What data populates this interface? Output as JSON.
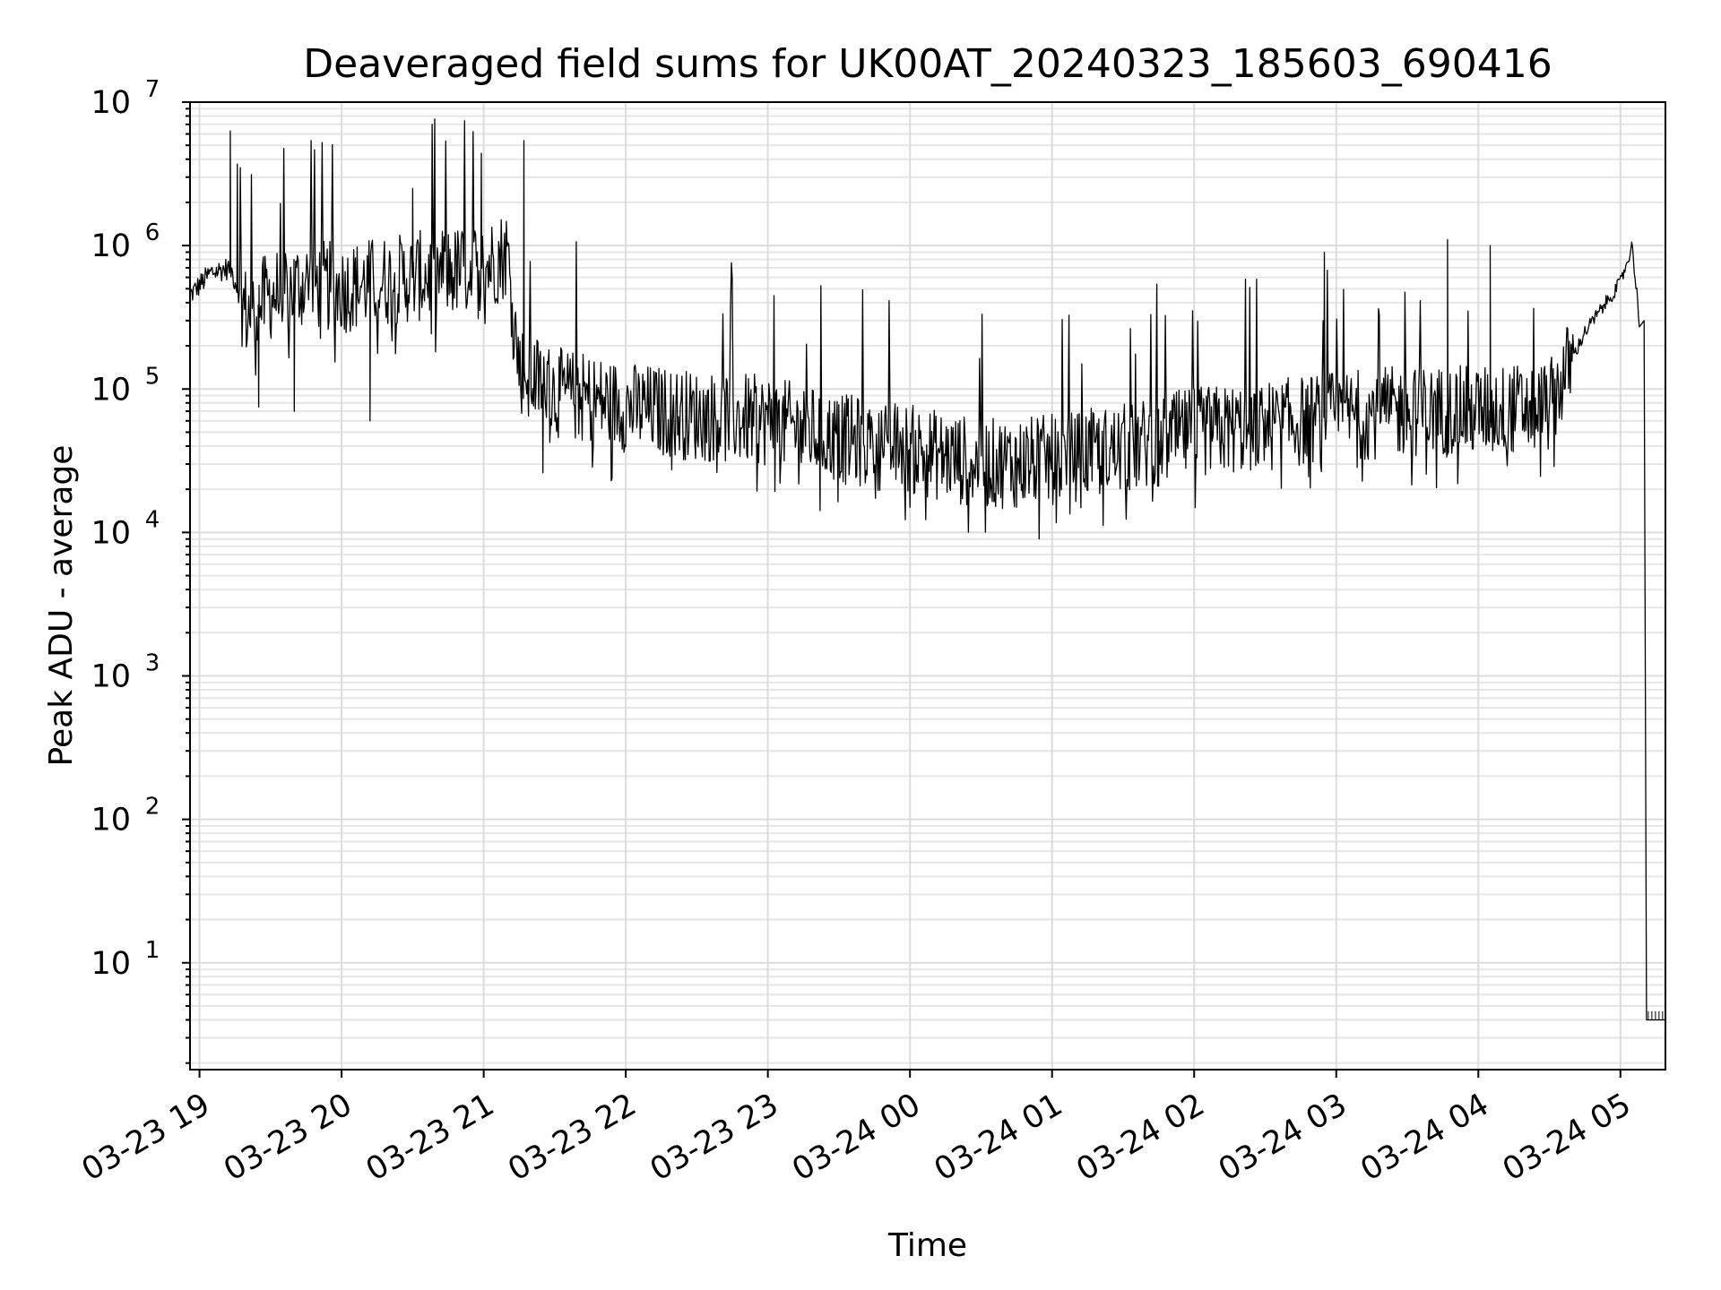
{
  "chart_data": {
    "type": "line",
    "title": "Deaveraged field sums for UK00AT_20240323_185603_690416",
    "xlabel": "Time",
    "ylabel": "Peak ADU - average",
    "yscale": "log",
    "ylim": [
      1.8,
      10000000
    ],
    "xlim": [
      "2024-03-23 18:56",
      "2024-03-24 05:19"
    ],
    "grid": true,
    "legend": "none",
    "line_color": "#000000",
    "x_ticks": [
      {
        "label": "03-23 19",
        "value": "2024-03-23 19:00"
      },
      {
        "label": "03-23 20",
        "value": "2024-03-23 20:00"
      },
      {
        "label": "03-23 21",
        "value": "2024-03-23 21:00"
      },
      {
        "label": "03-23 22",
        "value": "2024-03-23 22:00"
      },
      {
        "label": "03-23 23",
        "value": "2024-03-23 23:00"
      },
      {
        "label": "03-24 00",
        "value": "2024-03-24 00:00"
      },
      {
        "label": "03-24 01",
        "value": "2024-03-24 01:00"
      },
      {
        "label": "03-24 02",
        "value": "2024-03-24 02:00"
      },
      {
        "label": "03-24 03",
        "value": "2024-03-24 03:00"
      },
      {
        "label": "03-24 04",
        "value": "2024-03-24 04:00"
      },
      {
        "label": "03-24 05",
        "value": "2024-03-24 05:00"
      }
    ],
    "y_ticks": [
      {
        "base": "10",
        "exp": "1",
        "value": 10
      },
      {
        "base": "10",
        "exp": "2",
        "value": 100
      },
      {
        "base": "10",
        "exp": "3",
        "value": 1000
      },
      {
        "base": "10",
        "exp": "4",
        "value": 10000
      },
      {
        "base": "10",
        "exp": "5",
        "value": 100000
      },
      {
        "base": "10",
        "exp": "6",
        "value": 1000000
      },
      {
        "base": "10",
        "exp": "7",
        "value": 10000000
      }
    ],
    "series": [
      {
        "x": [
          "2024-03-23 18:56",
          "2024-03-23 19:05",
          "2024-03-23 19:13",
          "2024-03-23 19:20",
          "2024-03-23 19:30",
          "2024-03-23 19:45",
          "2024-03-23 20:00",
          "2024-03-23 20:15",
          "2024-03-23 20:30",
          "2024-03-23 20:45",
          "2024-03-23 21:00",
          "2024-03-23 21:10",
          "2024-03-23 21:15",
          "2024-03-23 21:30",
          "2024-03-23 21:45",
          "2024-03-23 22:00",
          "2024-03-23 22:30",
          "2024-03-23 23:00",
          "2024-03-23 23:30",
          "2024-03-24 00:00",
          "2024-03-24 00:30",
          "2024-03-24 01:00",
          "2024-03-24 01:30",
          "2024-03-24 02:00",
          "2024-03-24 02:30",
          "2024-03-24 03:00",
          "2024-03-24 03:30",
          "2024-03-24 04:00",
          "2024-03-24 04:30",
          "2024-03-24 04:45",
          "2024-03-24 05:00",
          "2024-03-24 05:05",
          "2024-03-24 05:08",
          "2024-03-24 05:12",
          "2024-03-24 05:19"
        ],
        "y": [
          450000,
          650000,
          700000,
          330000,
          450000,
          550000,
          500000,
          560000,
          600000,
          650000,
          700000,
          900000,
          140000,
          95000,
          85000,
          75000,
          65000,
          60000,
          45000,
          38000,
          30000,
          32000,
          38000,
          50000,
          55000,
          65000,
          70000,
          70000,
          75000,
          250000,
          550000,
          1000000,
          300000,
          4,
          4
        ],
        "spikes_high": [
          {
            "x": "2024-03-23 19:13",
            "y": 6300000
          },
          {
            "x": "2024-03-23 19:16",
            "y": 3700000
          },
          {
            "x": "2024-03-23 20:59",
            "y": 4400000
          },
          {
            "x": "2024-03-23 21:17",
            "y": 5400000
          },
          {
            "x": "2024-03-23 20:30",
            "y": 2500000
          },
          {
            "x": "2024-03-24 02:55",
            "y": 900000
          },
          {
            "x": "2024-03-24 03:47",
            "y": 1100000
          },
          {
            "x": "2024-03-24 04:05",
            "y": 1000000
          }
        ],
        "spikes_low": [
          {
            "x": "2024-03-23 19:25",
            "y": 75000
          },
          {
            "x": "2024-03-23 19:40",
            "y": 70000
          },
          {
            "x": "2024-03-23 20:12",
            "y": 60000
          },
          {
            "x": "2024-03-23 21:25",
            "y": 26000
          },
          {
            "x": "2024-03-24 00:00",
            "y": 15000
          },
          {
            "x": "2024-03-24 00:45",
            "y": 15000
          },
          {
            "x": "2024-03-24 01:45",
            "y": 21000
          }
        ]
      }
    ]
  }
}
